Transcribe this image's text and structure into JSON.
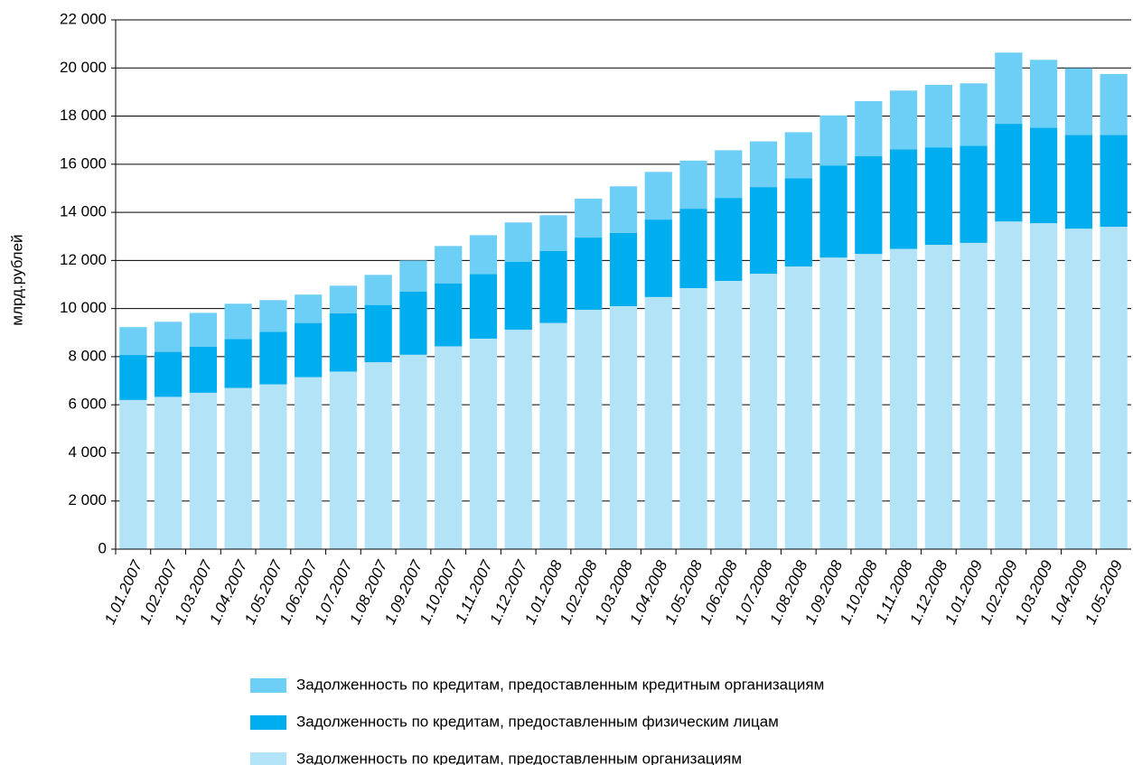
{
  "chart_data": {
    "type": "stacked_bar",
    "y_label": "млрд.рублей",
    "categories": [
      "1.01.2007",
      "1.02.2007",
      "1.03.2007",
      "1.04.2007",
      "1.05.2007",
      "1.06.2007",
      "1.07.2007",
      "1.08.2007",
      "1.09.2007",
      "1.10.2007",
      "1.11.2007",
      "1.12.2007",
      "1.01.2008",
      "1.02.2008",
      "1.03.2008",
      "1.04.2008",
      "1.05.2008",
      "1.06.2008",
      "1.07.2008",
      "1.08.2008",
      "1.09.2008",
      "1.10.2008",
      "1.11.2008",
      "1.12.2008",
      "1.01.2009",
      "1.02.2009",
      "1.03.2009",
      "1.04.2009",
      "1.05.2009"
    ],
    "series": [
      {
        "name": "Задолженность по кредитам, предоставленным организациям",
        "color": "#b3e3f7",
        "values": [
          6200,
          6330,
          6500,
          6700,
          6850,
          7150,
          7380,
          7770,
          8080,
          8430,
          8750,
          9120,
          9400,
          9950,
          10100,
          10480,
          10850,
          11150,
          11450,
          11750,
          12120,
          12270,
          12480,
          12650,
          12730,
          13620,
          13550,
          13320,
          13400
        ]
      },
      {
        "name": "Задолженность по кредитам, предоставленным физическим лицам",
        "color": "#00aeef",
        "values": [
          1870,
          1870,
          1920,
          2030,
          2180,
          2250,
          2420,
          2380,
          2620,
          2620,
          2680,
          2830,
          3000,
          3000,
          3050,
          3220,
          3300,
          3450,
          3600,
          3670,
          3830,
          4060,
          4140,
          4050,
          4040,
          4060,
          3970,
          3900,
          3820
        ]
      },
      {
        "name": "Задолженность по кредитам, предоставленным кредитным организациям",
        "color": "#6dcff6",
        "values": [
          1160,
          1250,
          1400,
          1470,
          1320,
          1180,
          1150,
          1250,
          1300,
          1550,
          1620,
          1630,
          1480,
          1620,
          1930,
          1980,
          2000,
          1980,
          1900,
          1910,
          2080,
          2290,
          2440,
          2600,
          2590,
          2960,
          2820,
          2770,
          2530
        ]
      }
    ],
    "ylim": [
      0,
      22000
    ],
    "yticks": [
      0,
      {
        "value": 2000,
        "label": "2 000"
      },
      {
        "value": 4000,
        "label": "4 000"
      },
      {
        "value": 6000,
        "label": "6 000"
      },
      {
        "value": 8000,
        "label": "8 000"
      },
      {
        "value": 10000,
        "label": "10 000"
      },
      {
        "value": 12000,
        "label": "12 000"
      },
      {
        "value": 14000,
        "label": "14 000"
      },
      {
        "value": 16000,
        "label": "16 000"
      },
      {
        "value": 18000,
        "label": "18 000"
      },
      {
        "value": 20000,
        "label": "20 000"
      },
      {
        "value": 22000,
        "label": "22 000"
      }
    ],
    "grid": true,
    "legend": "bottom"
  }
}
